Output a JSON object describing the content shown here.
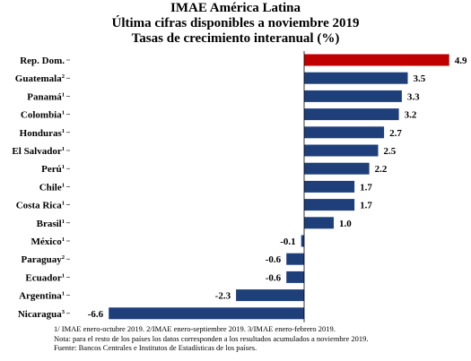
{
  "chart_data": {
    "type": "bar",
    "orientation": "horizontal",
    "title": "IMAE América Latina",
    "subtitle": "Última cifras disponibles a noviembre 2019",
    "subtitle2": "Tasas de crecimiento interanual (%)",
    "categories": [
      "Rep. Dom.",
      "Guatemala",
      "Panamá",
      "Colombia",
      "Honduras",
      "El Salvador",
      "Perú",
      "Chile",
      "Costa Rica",
      "Brasil",
      "México",
      "Paraguay",
      "Ecuador",
      "Argentina",
      "Nicaragua"
    ],
    "category_superscripts": [
      "",
      "2",
      "1",
      "1",
      "1",
      "1",
      "1",
      "1",
      "1",
      "1",
      "1",
      "2",
      "1",
      "1",
      "3"
    ],
    "values": [
      4.9,
      3.5,
      3.3,
      3.2,
      2.7,
      2.5,
      2.2,
      1.7,
      1.7,
      1.0,
      -0.1,
      -0.6,
      -0.6,
      -2.3,
      -6.6
    ],
    "value_labels": [
      "4.9",
      "3.5",
      "3.3",
      "3.2",
      "2.7",
      "2.5",
      "2.2",
      "1.7",
      "1.7",
      "1.0",
      "-0.1",
      "-0.6",
      "-0.6",
      "-2.3",
      "-6.6"
    ],
    "highlight_color": "#c00000",
    "bar_color": "#1f3f7a",
    "highlight_index": 0,
    "xlim": [
      -6.6,
      4.9
    ],
    "grid": false,
    "legend": "none"
  },
  "notes": {
    "line1": "1/ IMAE enero-octubre 2019. 2/IMAE enero-septiembre 2019. 3/IMAE enero-febrero 2019.",
    "line2": "Nota: para el resto de los países los datos corresponden a los resultados acumulados a noviembre 2019.",
    "line3": "Fuente: Bancos Centrales e Institutos de Estadísticas de los países."
  }
}
